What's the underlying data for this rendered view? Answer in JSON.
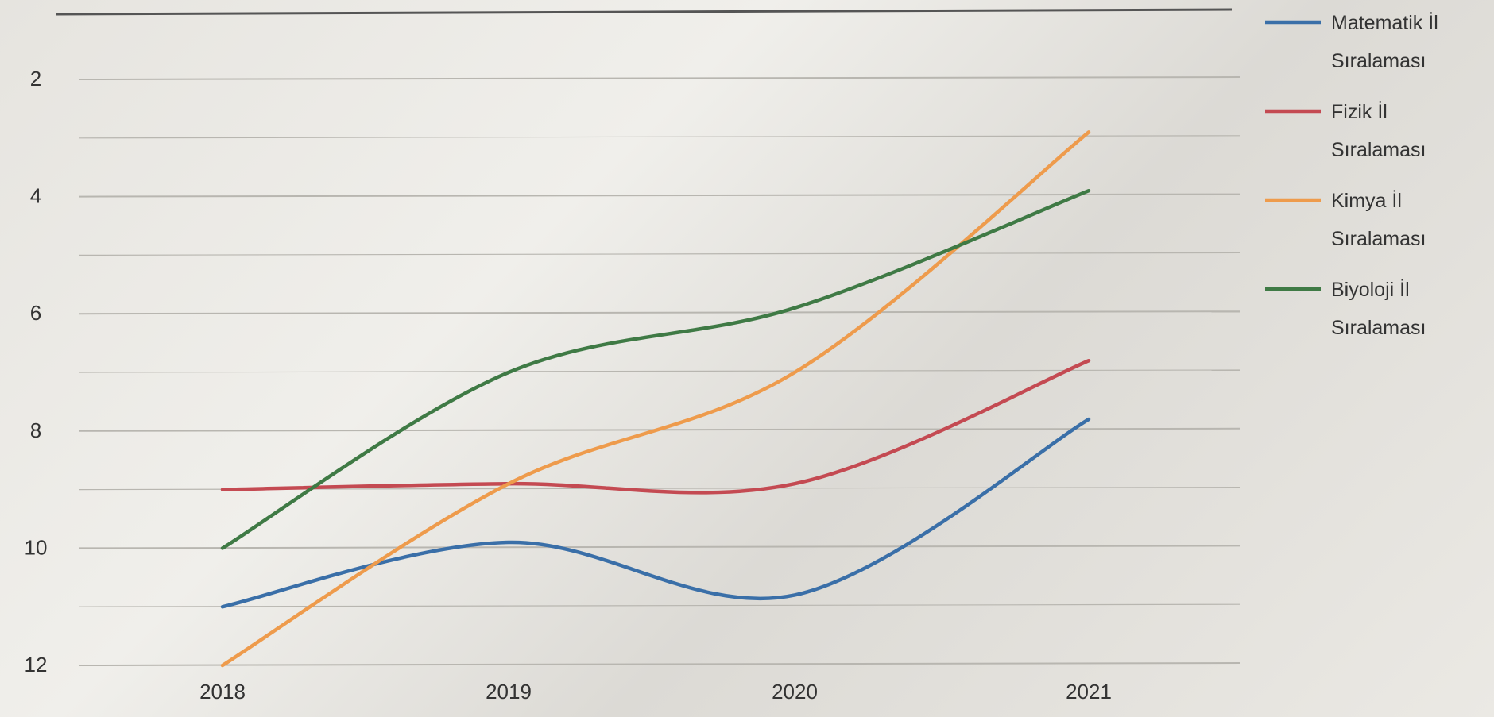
{
  "chart_data": {
    "type": "line",
    "title": "",
    "xlabel": "",
    "ylabel": "",
    "categories": [
      "2018",
      "2019",
      "2020",
      "2021"
    ],
    "ylim": [
      12,
      0
    ],
    "y_inverted": true,
    "y_ticks": [
      2,
      4,
      6,
      8,
      10,
      12
    ],
    "grid": true,
    "legend_position": "right",
    "series": [
      {
        "name_lines": [
          "Matematik İl",
          "Sıralaması"
        ],
        "values": [
          11,
          9.9,
          10.8,
          7.8
        ],
        "color": "#3a6fa8"
      },
      {
        "name_lines": [
          "Fizik İl",
          "Sıralaması"
        ],
        "values": [
          9,
          8.9,
          8.9,
          6.8
        ],
        "color": "#c44a52"
      },
      {
        "name_lines": [
          "Kimya İl",
          "Sıralaması"
        ],
        "values": [
          12,
          8.9,
          7,
          2.9
        ],
        "color": "#ee9b4c"
      },
      {
        "name_lines": [
          "Biyoloji İl",
          "Sıralaması"
        ],
        "values": [
          10,
          7,
          5.9,
          3.9
        ],
        "color": "#3f7a45"
      }
    ]
  }
}
